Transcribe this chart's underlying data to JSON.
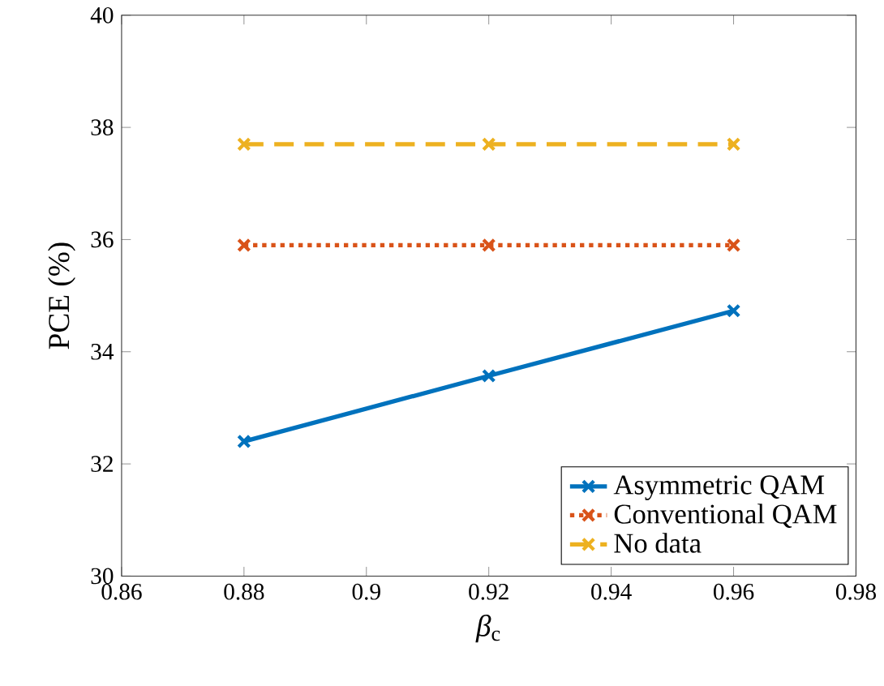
{
  "chart_data": {
    "type": "line",
    "xlabel": "*β*$_{c}$",
    "ylabel": "PCE (%)",
    "x": [
      0.88,
      0.92,
      0.96
    ],
    "xlim": [
      0.86,
      0.98
    ],
    "xticks": [
      0.86,
      0.88,
      0.9,
      0.92,
      0.94,
      0.96,
      0.98
    ],
    "ylim": [
      30,
      40
    ],
    "yticks": [
      30,
      32,
      34,
      36,
      38,
      40
    ],
    "marker": "cross",
    "legend": "bottom right",
    "grid": false,
    "series": [
      {
        "name": "Asymmetric QAM",
        "color": "#0072bd",
        "line_style": "solid",
        "values": [
          32.4,
          33.57,
          34.73
        ]
      },
      {
        "name": "Conventional QAM",
        "color": "#d95319",
        "line_style": "dotted",
        "values": [
          35.9,
          35.9,
          35.9
        ]
      },
      {
        "name": "No data",
        "color": "#edb120",
        "line_style": "dashed",
        "values": [
          37.7,
          37.7,
          37.7
        ]
      }
    ]
  }
}
